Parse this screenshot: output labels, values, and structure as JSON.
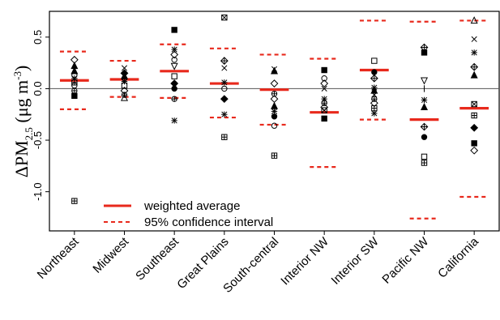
{
  "chart_data": {
    "type": "scatter",
    "ylabel_prefix": "ΔPM",
    "ylabel_sub": "2.5",
    "ylabel_suffix": " (μg m",
    "ylabel_sup": "-3",
    "ylabel_close": ")",
    "ylim": [
      -1.38,
      0.75
    ],
    "yticks": [
      {
        "value": 0.5,
        "label": "0.5"
      },
      {
        "value": 0.0,
        "label": "0.0"
      },
      {
        "value": -0.5,
        "label": "-0.5"
      },
      {
        "value": -1.0,
        "label": "-1.0"
      }
    ],
    "zero_line": true,
    "colors": {
      "average": "#e8291c",
      "points": "#000000",
      "zero": "#555555"
    },
    "legend": {
      "placement": "bottom-left",
      "entries": [
        {
          "label": "weighted average",
          "style": "solid"
        },
        {
          "label": "95% confidence interval",
          "style": "dashed"
        }
      ]
    },
    "categories": [
      "Northeast",
      "Midwest",
      "Southeast",
      "Great Plains",
      "South-central",
      "Interior NW",
      "Interior SW",
      "Pacific NW",
      "California"
    ],
    "weighted_average": [
      0.08,
      0.09,
      0.17,
      0.05,
      -0.01,
      -0.23,
      0.18,
      -0.3,
      -0.19
    ],
    "ci_upper": [
      0.36,
      0.27,
      0.43,
      0.39,
      0.33,
      0.29,
      0.66,
      0.65,
      0.66
    ],
    "ci_lower": [
      -0.2,
      -0.08,
      -0.09,
      -0.28,
      -0.35,
      -0.76,
      -0.3,
      -1.26,
      -1.05
    ],
    "points": [
      [
        {
          "y": 0.28,
          "m": "diamond"
        },
        {
          "y": 0.22,
          "m": "triangle-filled"
        },
        {
          "y": 0.17,
          "m": "triangle-filled"
        },
        {
          "y": 0.13,
          "m": "circle"
        },
        {
          "y": 0.1,
          "m": "asterisk"
        },
        {
          "y": 0.06,
          "m": "square-plus"
        },
        {
          "y": 0.03,
          "m": "circle"
        },
        {
          "y": -0.02,
          "m": "circle-plus"
        },
        {
          "y": -0.07,
          "m": "square-filled"
        },
        {
          "y": -1.09,
          "m": "square-plus"
        }
      ],
      [
        {
          "y": 0.2,
          "m": "cross"
        },
        {
          "y": 0.15,
          "m": "diamond-filled"
        },
        {
          "y": 0.12,
          "m": "triangle-filled"
        },
        {
          "y": 0.1,
          "m": "circle"
        },
        {
          "y": 0.07,
          "m": "asterisk"
        },
        {
          "y": 0.03,
          "m": "square"
        },
        {
          "y": -0.02,
          "m": "diamond"
        },
        {
          "y": -0.06,
          "m": "circle-plus"
        },
        {
          "y": -0.09,
          "m": "triangle"
        }
      ],
      [
        {
          "y": 0.57,
          "m": "square-filled"
        },
        {
          "y": 0.38,
          "m": "asterisk"
        },
        {
          "y": 0.33,
          "m": "diamond"
        },
        {
          "y": 0.28,
          "m": "circle"
        },
        {
          "y": 0.22,
          "m": "triangle-down"
        },
        {
          "y": 0.12,
          "m": "square"
        },
        {
          "y": 0.05,
          "m": "diamond-filled"
        },
        {
          "y": 0.0,
          "m": "circle-filled"
        },
        {
          "y": -0.1,
          "m": "circle-plus"
        },
        {
          "y": -0.31,
          "m": "asterisk"
        }
      ],
      [
        {
          "y": 0.69,
          "m": "square-x"
        },
        {
          "y": 0.27,
          "m": "diamond-plus"
        },
        {
          "y": 0.2,
          "m": "cross"
        },
        {
          "y": 0.06,
          "m": "asterisk"
        },
        {
          "y": 0.0,
          "m": "circle"
        },
        {
          "y": -0.1,
          "m": "diamond-filled"
        },
        {
          "y": -0.25,
          "m": "asterisk"
        },
        {
          "y": -0.47,
          "m": "square-plus"
        }
      ],
      [
        {
          "y": 0.19,
          "m": "cross"
        },
        {
          "y": 0.17,
          "m": "triangle-filled"
        },
        {
          "y": 0.05,
          "m": "diamond"
        },
        {
          "y": -0.05,
          "m": "circle-plus"
        },
        {
          "y": -0.1,
          "m": "diamond"
        },
        {
          "y": -0.17,
          "m": "triangle-filled"
        },
        {
          "y": -0.22,
          "m": "asterisk"
        },
        {
          "y": -0.27,
          "m": "circle-filled"
        },
        {
          "y": -0.36,
          "m": "circle"
        },
        {
          "y": -0.65,
          "m": "square-plus"
        }
      ],
      [
        {
          "y": 0.18,
          "m": "square-filled"
        },
        {
          "y": 0.1,
          "m": "circle"
        },
        {
          "y": 0.05,
          "m": "diamond"
        },
        {
          "y": 0.0,
          "m": "cross"
        },
        {
          "y": -0.1,
          "m": "asterisk"
        },
        {
          "y": -0.14,
          "m": "circle-plus"
        },
        {
          "y": -0.18,
          "m": "diamond"
        },
        {
          "y": -0.21,
          "m": "square-x"
        },
        {
          "y": -0.29,
          "m": "square-filled"
        }
      ],
      [
        {
          "y": 0.27,
          "m": "square"
        },
        {
          "y": 0.16,
          "m": "circle-filled"
        },
        {
          "y": 0.1,
          "m": "diamond-plus"
        },
        {
          "y": 0.01,
          "m": "asterisk"
        },
        {
          "y": -0.02,
          "m": "triangle-filled"
        },
        {
          "y": -0.06,
          "m": "cross"
        },
        {
          "y": -0.1,
          "m": "circle-plus"
        },
        {
          "y": -0.14,
          "m": "diamond"
        },
        {
          "y": -0.19,
          "m": "square-plus"
        },
        {
          "y": -0.24,
          "m": "asterisk"
        }
      ],
      [
        {
          "y": 0.4,
          "m": "diamond-plus"
        },
        {
          "y": 0.35,
          "m": "square-filled"
        },
        {
          "y": 0.08,
          "m": "triangle-down"
        },
        {
          "y": 0.0,
          "m": "vbar"
        },
        {
          "y": -0.11,
          "m": "asterisk"
        },
        {
          "y": -0.18,
          "m": "triangle-filled"
        },
        {
          "y": -0.37,
          "m": "diamond-plus"
        },
        {
          "y": -0.47,
          "m": "circle-filled"
        },
        {
          "y": -0.66,
          "m": "square"
        },
        {
          "y": -0.72,
          "m": "square-plus"
        }
      ],
      [
        {
          "y": 0.66,
          "m": "triangle"
        },
        {
          "y": 0.48,
          "m": "cross"
        },
        {
          "y": 0.35,
          "m": "asterisk"
        },
        {
          "y": 0.21,
          "m": "diamond-plus"
        },
        {
          "y": 0.13,
          "m": "triangle-filled"
        },
        {
          "y": -0.15,
          "m": "square-x"
        },
        {
          "y": -0.26,
          "m": "square-plus"
        },
        {
          "y": -0.38,
          "m": "diamond-filled"
        },
        {
          "y": -0.53,
          "m": "square-filled"
        },
        {
          "y": -0.6,
          "m": "diamond"
        }
      ]
    ]
  }
}
